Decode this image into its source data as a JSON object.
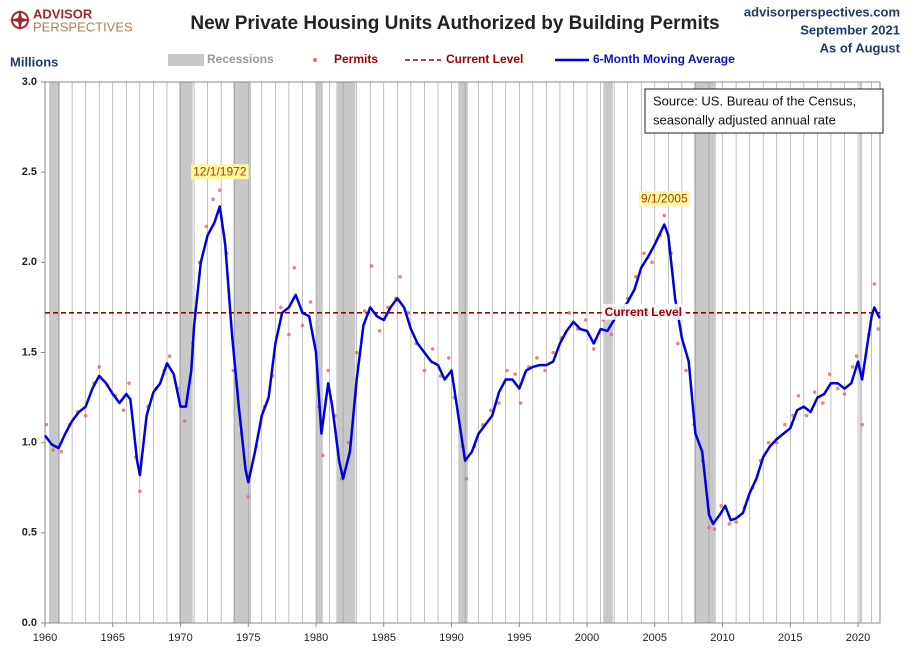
{
  "logo": {
    "line1": "ADVISOR",
    "line2": "PERSPECTIVES"
  },
  "site": {
    "url": "advisorperspectives.com",
    "date": "September 2021",
    "as_of": "As of August"
  },
  "chart_data": {
    "type": "line",
    "title": "New Private Housing Units Authorized by Building Permits",
    "y_label": "Millions",
    "source": [
      "Source: US. Bureau of the Census,",
      "seasonally adjusted annual rate"
    ],
    "xlim": [
      1960,
      2021.62
    ],
    "xticks": [
      1960,
      1965,
      1970,
      1975,
      1980,
      1985,
      1990,
      1995,
      2000,
      2005,
      2010,
      2015,
      2020
    ],
    "xgrid": [
      1960,
      1961,
      1962,
      1963,
      1964,
      1965,
      1966,
      1967,
      1968,
      1969,
      1970,
      1971,
      1972,
      1973,
      1974,
      1975,
      1976,
      1977,
      1978,
      1979,
      1980,
      1981,
      1982,
      1983,
      1984,
      1985,
      1986,
      1987,
      1988,
      1989,
      1990,
      1991,
      1992,
      1993,
      1994,
      1995,
      1996,
      1997,
      1998,
      1999,
      2000,
      2001,
      2002,
      2003,
      2004,
      2005,
      2006,
      2007,
      2008,
      2009,
      2010,
      2011,
      2012,
      2013,
      2014,
      2015,
      2016,
      2017,
      2018,
      2019,
      2020,
      2021
    ],
    "ylim": [
      0,
      3
    ],
    "yticks": [
      {
        "value": 0,
        "label": "0.0"
      },
      0.5,
      {
        "value": 1,
        "label": "1.0"
      },
      1.5,
      {
        "value": 2,
        "label": "2.0"
      },
      2.5,
      {
        "value": 3,
        "label": "3.0"
      }
    ],
    "recessions_name": "Recessions",
    "recessions_color": "#c8c8c8",
    "recessions": [
      [
        1960.3,
        1961.1
      ],
      [
        1969.9,
        1970.9
      ],
      [
        1973.9,
        1975.2
      ],
      [
        1980.0,
        1980.5
      ],
      [
        1981.5,
        1982.9
      ],
      [
        1990.5,
        1991.2
      ],
      [
        2001.2,
        2001.9
      ],
      [
        2007.9,
        2009.5
      ],
      [
        2020.1,
        2020.3
      ]
    ],
    "reference_line": {
      "name": "Current Level",
      "value": 1.72,
      "color": "#a00000",
      "label": "Current Level",
      "label_x": 2001.3
    },
    "series": [
      {
        "name": "Permits",
        "kind": "scatter",
        "color": "#e07070",
        "x": [
          1960.1,
          1960.6,
          1961.2,
          1961.8,
          1962.4,
          1963.0,
          1963.6,
          1964.0,
          1964.6,
          1965.2,
          1965.8,
          1966.2,
          1966.7,
          1967.0,
          1967.6,
          1968.2,
          1968.8,
          1969.2,
          1969.8,
          1970.3,
          1970.9,
          1971.4,
          1971.9,
          1972.4,
          1972.9,
          1973.4,
          1973.9,
          1974.5,
          1975.0,
          1975.6,
          1976.2,
          1976.8,
          1977.4,
          1978.0,
          1978.4,
          1979.0,
          1979.6,
          1980.2,
          1980.5,
          1980.9,
          1981.4,
          1981.9,
          1982.4,
          1983.0,
          1983.6,
          1984.1,
          1984.7,
          1985.3,
          1985.9,
          1986.2,
          1986.8,
          1987.4,
          1988.0,
          1988.6,
          1989.2,
          1989.8,
          1990.2,
          1990.8,
          1991.1,
          1991.7,
          1992.3,
          1992.9,
          1993.5,
          1994.1,
          1994.7,
          1995.1,
          1995.7,
          1996.3,
          1996.9,
          1997.5,
          1998.1,
          1998.7,
          1999.3,
          1999.9,
          2000.5,
          2001.2,
          2001.8,
          2002.4,
          2003.0,
          2003.6,
          2004.2,
          2004.8,
          2005.4,
          2005.7,
          2006.2,
          2006.7,
          2007.3,
          2007.9,
          2008.5,
          2009.0,
          2009.4,
          2009.9,
          2010.5,
          2011.0,
          2011.6,
          2012.2,
          2012.8,
          2013.4,
          2014.0,
          2014.6,
          2015.2,
          2015.6,
          2016.2,
          2016.8,
          2017.4,
          2017.9,
          2018.5,
          2019.0,
          2019.6,
          2019.9,
          2020.3,
          2020.8,
          2021.2,
          2021.5
        ],
        "values": [
          1.1,
          0.96,
          0.95,
          1.1,
          1.17,
          1.15,
          1.33,
          1.42,
          1.32,
          1.26,
          1.18,
          1.33,
          0.92,
          0.73,
          1.2,
          1.3,
          1.4,
          1.48,
          1.3,
          1.12,
          1.55,
          2.0,
          2.2,
          2.35,
          2.4,
          2.05,
          1.4,
          1.05,
          0.7,
          0.98,
          1.2,
          1.37,
          1.75,
          1.6,
          1.97,
          1.65,
          1.78,
          1.2,
          0.93,
          1.4,
          1.15,
          0.8,
          1.0,
          1.5,
          1.73,
          1.98,
          1.62,
          1.75,
          1.8,
          1.92,
          1.72,
          1.55,
          1.4,
          1.52,
          1.37,
          1.47,
          1.25,
          0.98,
          0.8,
          0.98,
          1.1,
          1.18,
          1.22,
          1.4,
          1.38,
          1.22,
          1.42,
          1.47,
          1.4,
          1.5,
          1.58,
          1.72,
          1.63,
          1.68,
          1.52,
          1.68,
          1.6,
          1.75,
          1.8,
          1.92,
          2.05,
          2.0,
          2.15,
          2.26,
          2.05,
          1.55,
          1.4,
          1.1,
          0.9,
          0.53,
          0.52,
          0.65,
          0.55,
          0.56,
          0.64,
          0.75,
          0.9,
          1.0,
          1.0,
          1.1,
          1.15,
          1.26,
          1.15,
          1.28,
          1.22,
          1.38,
          1.3,
          1.27,
          1.42,
          1.48,
          1.1,
          1.6,
          1.88,
          1.63
        ]
      },
      {
        "name": "6-Month Moving Average",
        "kind": "line",
        "color": "#0000dd",
        "x": [
          1960.0,
          1960.5,
          1961.0,
          1961.5,
          1962.0,
          1962.5,
          1963.0,
          1963.5,
          1964.0,
          1964.5,
          1965.0,
          1965.5,
          1966.0,
          1966.3,
          1966.8,
          1967.0,
          1967.5,
          1968.0,
          1968.5,
          1969.0,
          1969.5,
          1970.0,
          1970.4,
          1970.8,
          1971.0,
          1971.5,
          1972.0,
          1972.5,
          1972.9,
          1973.3,
          1973.8,
          1974.3,
          1974.8,
          1975.0,
          1975.5,
          1976.0,
          1976.5,
          1977.0,
          1977.5,
          1978.0,
          1978.5,
          1979.0,
          1979.5,
          1980.0,
          1980.4,
          1980.9,
          1981.2,
          1981.7,
          1982.0,
          1982.5,
          1983.0,
          1983.5,
          1984.0,
          1984.5,
          1985.0,
          1985.5,
          1986.0,
          1986.5,
          1987.0,
          1987.5,
          1988.0,
          1988.5,
          1989.0,
          1989.5,
          1990.0,
          1990.5,
          1991.0,
          1991.5,
          1992.0,
          1992.5,
          1993.0,
          1993.5,
          1994.0,
          1994.5,
          1995.0,
          1995.5,
          1996.0,
          1996.5,
          1997.0,
          1997.5,
          1998.0,
          1998.5,
          1999.0,
          1999.5,
          2000.0,
          2000.5,
          2001.0,
          2001.5,
          2002.0,
          2002.5,
          2003.0,
          2003.5,
          2004.0,
          2004.5,
          2005.0,
          2005.7,
          2006.0,
          2006.5,
          2007.0,
          2007.5,
          2008.0,
          2008.5,
          2009.0,
          2009.3,
          2009.8,
          2010.2,
          2010.6,
          2011.0,
          2011.5,
          2012.0,
          2012.5,
          2013.0,
          2013.5,
          2014.0,
          2014.5,
          2015.0,
          2015.5,
          2016.0,
          2016.5,
          2017.0,
          2017.5,
          2018.0,
          2018.5,
          2019.0,
          2019.5,
          2020.0,
          2020.3,
          2020.7,
          2021.0,
          2021.2,
          2021.6
        ],
        "values": [
          1.04,
          0.99,
          0.97,
          1.05,
          1.12,
          1.17,
          1.2,
          1.3,
          1.37,
          1.33,
          1.27,
          1.22,
          1.27,
          1.24,
          0.9,
          0.82,
          1.15,
          1.28,
          1.33,
          1.44,
          1.38,
          1.2,
          1.2,
          1.4,
          1.65,
          2.0,
          2.15,
          2.22,
          2.31,
          2.1,
          1.6,
          1.2,
          0.85,
          0.78,
          0.95,
          1.15,
          1.25,
          1.55,
          1.72,
          1.75,
          1.82,
          1.72,
          1.7,
          1.5,
          1.05,
          1.33,
          1.2,
          0.9,
          0.8,
          0.95,
          1.35,
          1.65,
          1.75,
          1.7,
          1.68,
          1.75,
          1.8,
          1.75,
          1.63,
          1.55,
          1.5,
          1.45,
          1.43,
          1.35,
          1.4,
          1.15,
          0.9,
          0.95,
          1.05,
          1.1,
          1.15,
          1.28,
          1.35,
          1.35,
          1.3,
          1.4,
          1.42,
          1.43,
          1.43,
          1.45,
          1.55,
          1.62,
          1.67,
          1.63,
          1.62,
          1.55,
          1.63,
          1.62,
          1.68,
          1.73,
          1.78,
          1.85,
          1.97,
          2.03,
          2.1,
          2.21,
          2.15,
          1.8,
          1.58,
          1.45,
          1.05,
          0.95,
          0.6,
          0.55,
          0.6,
          0.65,
          0.57,
          0.58,
          0.61,
          0.72,
          0.8,
          0.92,
          0.98,
          1.02,
          1.05,
          1.08,
          1.18,
          1.2,
          1.17,
          1.25,
          1.27,
          1.33,
          1.33,
          1.3,
          1.33,
          1.45,
          1.35,
          1.55,
          1.7,
          1.75,
          1.69
        ]
      }
    ],
    "annotations": [
      {
        "text": "12/1/1972",
        "x": 1972.9,
        "y": 2.5
      },
      {
        "text": "9/1/2005",
        "x": 2005.7,
        "y": 2.35
      }
    ]
  }
}
